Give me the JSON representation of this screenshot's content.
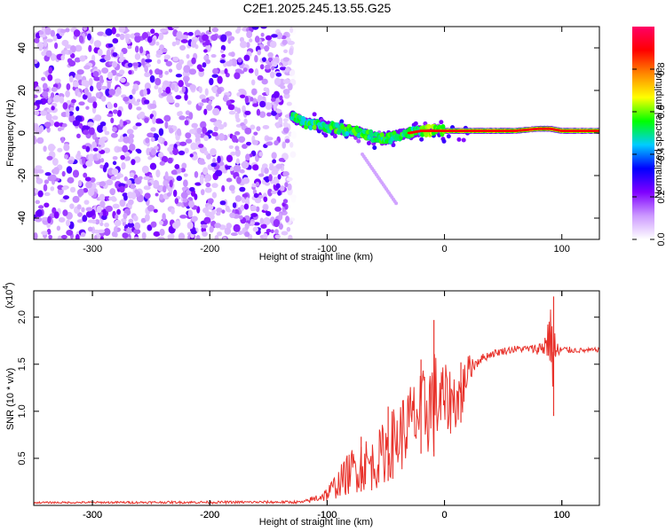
{
  "chart_data": [
    {
      "type": "heatmap",
      "title": "C2E1.2025.245.13.55.G25",
      "xlabel": "Height of straight line (km)",
      "ylabel": "Frequency (Hz)",
      "xlim": [
        -350,
        132
      ],
      "ylim": [
        -50,
        50
      ],
      "xticks": [
        -300,
        -200,
        -100,
        0,
        100
      ],
      "xtick_labels": [
        "-300",
        "-200",
        "-100",
        "0",
        "100"
      ],
      "yticks": [
        -40,
        -20,
        0,
        20,
        40
      ],
      "ytick_labels": [
        "-40",
        "-20",
        "0",
        "20",
        "40"
      ],
      "noise_region_km": [
        -350,
        -128
      ],
      "signal_track": {
        "description": "Narrow high-amplitude line near 0 Hz above about -130 km",
        "x": [
          -130,
          -120,
          -110,
          -100,
          -90,
          -80,
          -70,
          -60,
          -50,
          -40,
          -30,
          -20,
          -10,
          0,
          20,
          40,
          60,
          80,
          90,
          100,
          132
        ],
        "freq": [
          8,
          5,
          4,
          3,
          2,
          1,
          0,
          -2,
          -3,
          -1,
          0,
          1,
          1,
          1,
          1,
          1,
          1,
          2,
          2,
          1,
          1
        ]
      },
      "colorbar": {
        "label": "Normalized spectral amplitude",
        "range": [
          0.0,
          1.0
        ],
        "ticks": [
          0.0,
          0.2,
          0.4,
          0.6,
          0.8
        ],
        "tick_labels": [
          "0.0",
          "0.2",
          "0.4",
          "0.6",
          "0.8"
        ],
        "colors": [
          "#ffffff",
          "#cc99ff",
          "#7f00ff",
          "#0000ff",
          "#00ccff",
          "#00ff00",
          "#ffff00",
          "#ff8800",
          "#ff0000",
          "#ff0066"
        ]
      }
    },
    {
      "type": "line",
      "xlabel": "Height of straight line (km)",
      "ylabel": "SNR (10 * v/v)",
      "scale_label_base": "(x10",
      "scale_label_exp": "4",
      "scale_label_end": ")",
      "xlim": [
        -350,
        132
      ],
      "ylim": [
        0,
        2.28
      ],
      "xticks": [
        -300,
        -200,
        -100,
        0,
        100
      ],
      "xtick_labels": [
        "-300",
        "-200",
        "-100",
        "0",
        "100"
      ],
      "yticks": [
        0.5,
        1.0,
        1.5,
        2.0
      ],
      "ytick_labels": [
        "0.5",
        "1.0",
        "1.5",
        "2.0"
      ],
      "color": "#e8312a",
      "envelope": {
        "x": [
          -350,
          -120,
          -110,
          -100,
          -90,
          -80,
          -70,
          -60,
          -50,
          -40,
          -30,
          -20,
          -10,
          0,
          10,
          15,
          20,
          30,
          40,
          50,
          60,
          70,
          80,
          85,
          90,
          93,
          95,
          100,
          110,
          120,
          132
        ],
        "low": [
          0.02,
          0.02,
          0.03,
          0.04,
          0.08,
          0.12,
          0.15,
          0.15,
          0.25,
          0.3,
          0.45,
          0.55,
          0.5,
          0.7,
          0.8,
          0.9,
          1.3,
          1.5,
          1.57,
          1.6,
          1.62,
          1.63,
          1.6,
          1.55,
          1.5,
          1.0,
          1.5,
          1.6,
          1.62,
          1.62,
          1.63
        ],
        "high": [
          0.04,
          0.05,
          0.12,
          0.2,
          0.4,
          0.6,
          0.75,
          0.7,
          0.95,
          1.1,
          1.3,
          1.4,
          1.7,
          1.5,
          1.45,
          1.5,
          1.6,
          1.6,
          1.65,
          1.68,
          1.7,
          1.7,
          1.72,
          1.85,
          2.1,
          2.22,
          1.75,
          1.7,
          1.68,
          1.67,
          1.68
        ]
      },
      "spikes": [
        {
          "x": -9,
          "y": 1.97
        },
        {
          "x": -20,
          "y": 1.55
        },
        {
          "x": -48,
          "y": 1.05
        },
        {
          "x": -71,
          "y": 0.73
        },
        {
          "x": 14,
          "y": 1.52
        },
        {
          "x": 93,
          "y": 2.22
        },
        {
          "x": 93,
          "y": 0.95
        }
      ]
    }
  ]
}
